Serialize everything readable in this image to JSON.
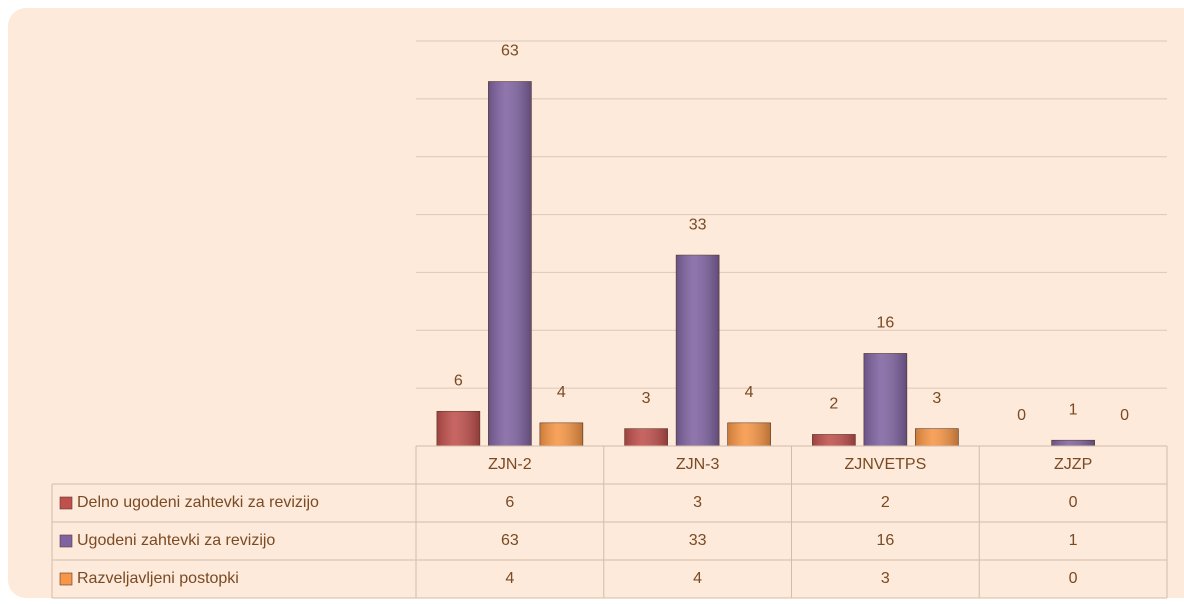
{
  "chart_data": {
    "type": "bar",
    "categories": [
      "ZJN-2",
      "ZJN-3",
      "ZJNVETPS",
      "ZJZP"
    ],
    "series": [
      {
        "name": "Delno ugodeni zahtevki za revizijo",
        "color": "#c0504d",
        "values": [
          6,
          3,
          2,
          0
        ]
      },
      {
        "name": "Ugodeni zahtevki za revizijo",
        "color": "#8064a2",
        "values": [
          63,
          33,
          16,
          1
        ]
      },
      {
        "name": "Razveljavljeni postopki",
        "color": "#f79646",
        "values": [
          4,
          4,
          3,
          0
        ]
      }
    ],
    "ylim": [
      0,
      70
    ],
    "yticks": [
      0,
      10,
      20,
      30,
      40,
      50,
      60,
      70
    ],
    "grid": true,
    "legend": "data-table"
  }
}
